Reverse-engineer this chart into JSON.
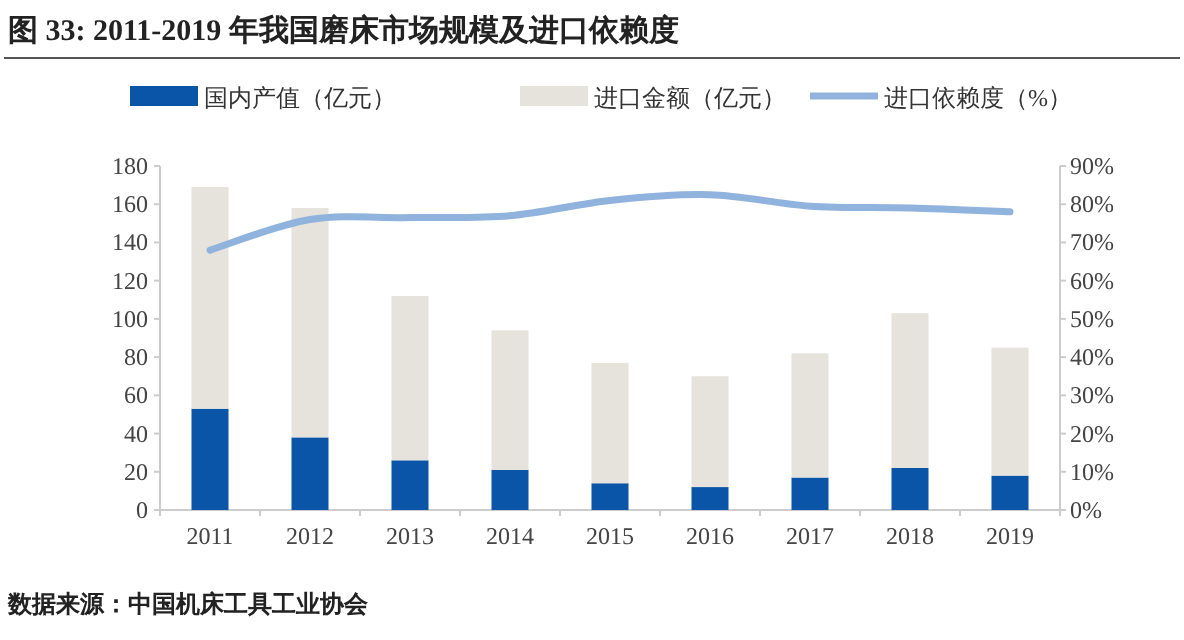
{
  "chart_data": {
    "type": "bar",
    "stacked": true,
    "title": "图 33: 2011-2019 年我国磨床市场规模及进口依赖度",
    "annotations": [
      "数据来源：中国机床工具工业协会"
    ],
    "categories": [
      "2011",
      "2012",
      "2013",
      "2014",
      "2015",
      "2016",
      "2017",
      "2018",
      "2019"
    ],
    "series": [
      {
        "name": "国内产值（亿元）",
        "color": "#0a55a8",
        "values": [
          53,
          38,
          26,
          21,
          14,
          12,
          17,
          22,
          18
        ]
      },
      {
        "name": "进口金额（亿元）",
        "color": "#e6e3dd",
        "values": [
          116,
          120,
          86,
          73,
          63,
          58,
          65,
          81,
          67
        ]
      },
      {
        "name": "进口依赖度（%）",
        "type": "line",
        "axis": "y2",
        "color": "#8fb3dc",
        "values": [
          68,
          76,
          76.5,
          77,
          81,
          82.5,
          79.5,
          79,
          78
        ]
      }
    ],
    "ylim": [
      0,
      180
    ],
    "yticks": [
      0,
      20,
      40,
      60,
      80,
      100,
      120,
      140,
      160,
      180
    ],
    "y2lim": [
      0,
      90
    ],
    "y2ticks": [
      {
        "value": 0,
        "label": "0%"
      },
      {
        "value": 10,
        "label": "10%"
      },
      {
        "value": 20,
        "label": "20%"
      },
      {
        "value": 30,
        "label": "30%"
      },
      {
        "value": 40,
        "label": "40%"
      },
      {
        "value": 50,
        "label": "50%"
      },
      {
        "value": 60,
        "label": "60%"
      },
      {
        "value": 70,
        "label": "70%"
      },
      {
        "value": 80,
        "label": "80%"
      },
      {
        "value": 90,
        "label": "90%"
      }
    ],
    "legend": "top"
  }
}
